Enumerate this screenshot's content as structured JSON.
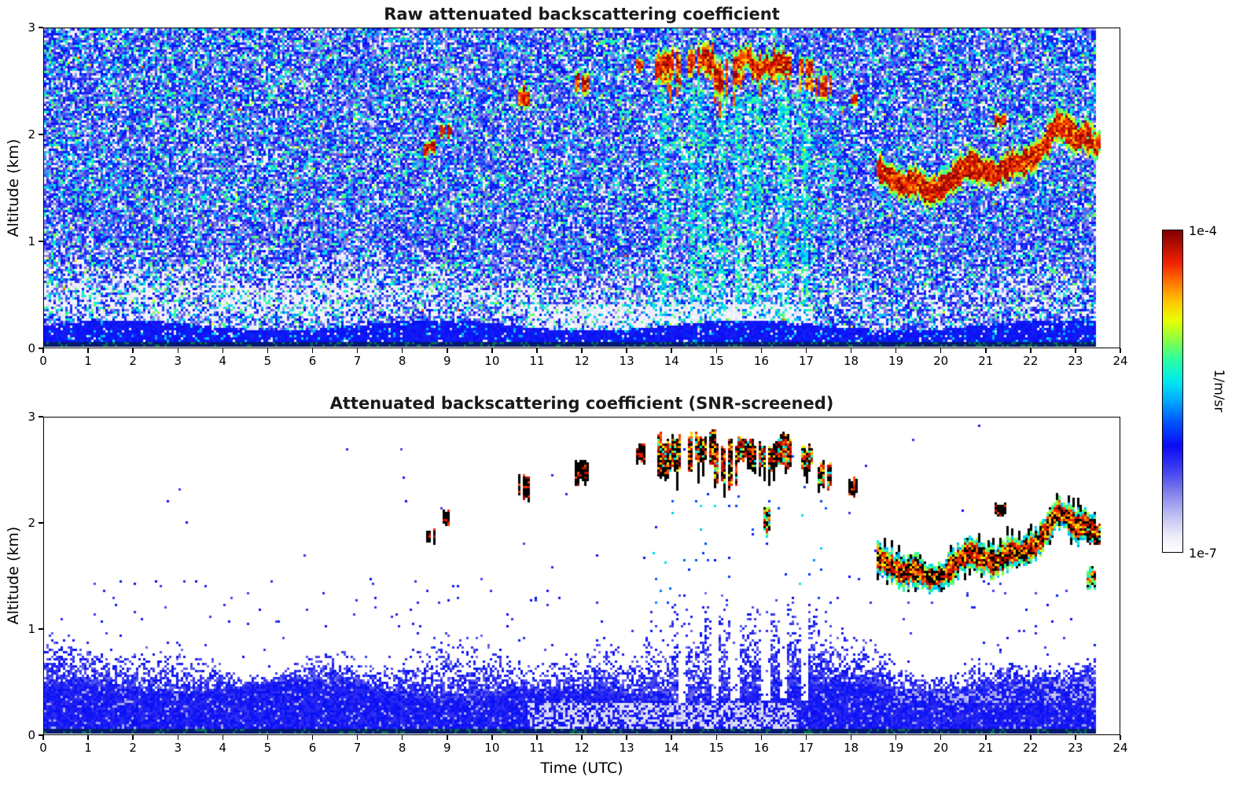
{
  "figure": {
    "background": "#ffffff",
    "xlabel": "Time (UTC)",
    "ylabel": "Altitude (km)",
    "colorbar": {
      "label": "1/m/sr",
      "top_label": "1e-4",
      "bottom_label": "1e-7",
      "stops": [
        {
          "t": 0.0,
          "c": "#ffffff"
        },
        {
          "t": 0.05,
          "c": "#ececfb"
        },
        {
          "t": 0.11,
          "c": "#c2c2f3"
        },
        {
          "t": 0.18,
          "c": "#8585ec"
        },
        {
          "t": 0.26,
          "c": "#3b3bf0"
        },
        {
          "t": 0.33,
          "c": "#0b0bf5"
        },
        {
          "t": 0.4,
          "c": "#0050ff"
        },
        {
          "t": 0.47,
          "c": "#00a8ff"
        },
        {
          "t": 0.53,
          "c": "#00e8f0"
        },
        {
          "t": 0.6,
          "c": "#2cff9e"
        },
        {
          "t": 0.66,
          "c": "#8aff42"
        },
        {
          "t": 0.72,
          "c": "#e8ff00"
        },
        {
          "t": 0.78,
          "c": "#ffc400"
        },
        {
          "t": 0.84,
          "c": "#ff7300"
        },
        {
          "t": 0.9,
          "c": "#f02000"
        },
        {
          "t": 1.0,
          "c": "#800000"
        }
      ]
    }
  },
  "chart_data": {
    "type": "heatmap",
    "value_scale": {
      "min": "1e-7",
      "max": "1e-4",
      "units": "1/m/sr",
      "scale": "log"
    },
    "panels": [
      {
        "title": "Raw attenuated backscattering coefficient",
        "xlim": [
          0,
          24
        ],
        "ylim": [
          0,
          3
        ],
        "xticks": [
          0,
          1,
          2,
          3,
          4,
          5,
          6,
          7,
          8,
          9,
          10,
          11,
          12,
          13,
          14,
          15,
          16,
          17,
          18,
          19,
          20,
          21,
          22,
          23,
          24
        ],
        "yticks": [
          0,
          1,
          2,
          3
        ]
      },
      {
        "title": "Attenuated backscattering coefficient (SNR-screened)",
        "xlim": [
          0,
          24
        ],
        "ylim": [
          0,
          3
        ],
        "xticks": [
          0,
          1,
          2,
          3,
          4,
          5,
          6,
          7,
          8,
          9,
          10,
          11,
          12,
          13,
          14,
          15,
          16,
          17,
          18,
          19,
          20,
          21,
          22,
          23,
          24
        ],
        "yticks": [
          0,
          1,
          2,
          3
        ]
      }
    ],
    "features": {
      "data_end_time": 23.55,
      "clouds": [
        {
          "t0": 13.7,
          "t1": 14.15,
          "aLo": 2.45,
          "aHi": 2.85
        },
        {
          "t0": 14.4,
          "t1": 14.95,
          "aLo": 2.5,
          "aHi": 2.9
        },
        {
          "t0": 15.0,
          "t1": 15.45,
          "aLo": 2.3,
          "aHi": 2.8
        },
        {
          "t0": 15.55,
          "t1": 15.8,
          "aLo": 2.55,
          "aHi": 2.85
        },
        {
          "t0": 15.85,
          "t1": 16.2,
          "aLo": 2.45,
          "aHi": 2.8
        },
        {
          "t0": 16.3,
          "t1": 16.65,
          "aLo": 2.5,
          "aHi": 2.85
        },
        {
          "t0": 16.9,
          "t1": 17.1,
          "aLo": 2.5,
          "aHi": 2.75
        },
        {
          "t0": 17.25,
          "t1": 17.55,
          "aLo": 2.3,
          "aHi": 2.6
        }
      ],
      "small_clouds": [
        {
          "t0": 8.5,
          "t1": 8.68,
          "aLo": 1.78,
          "aHi": 1.95
        },
        {
          "t0": 8.9,
          "t1": 9.05,
          "aLo": 1.95,
          "aHi": 2.12
        },
        {
          "t0": 10.62,
          "t1": 10.78,
          "aLo": 2.2,
          "aHi": 2.5
        },
        {
          "t0": 11.92,
          "t1": 12.08,
          "aLo": 2.35,
          "aHi": 2.6
        },
        {
          "t0": 13.25,
          "t1": 13.38,
          "aLo": 2.55,
          "aHi": 2.75
        },
        {
          "t0": 18.0,
          "t1": 18.12,
          "aLo": 2.25,
          "aHi": 2.42
        },
        {
          "t0": 21.28,
          "t1": 21.42,
          "aLo": 2.05,
          "aHi": 2.2
        }
      ],
      "aerosol_layer": {
        "path": [
          [
            18.65,
            1.68
          ],
          [
            18.9,
            1.6
          ],
          [
            19.2,
            1.52
          ],
          [
            19.5,
            1.56
          ],
          [
            19.8,
            1.46
          ],
          [
            20.1,
            1.5
          ],
          [
            20.4,
            1.62
          ],
          [
            20.7,
            1.72
          ],
          [
            21.0,
            1.66
          ],
          [
            21.3,
            1.62
          ],
          [
            21.6,
            1.72
          ],
          [
            21.9,
            1.73
          ],
          [
            22.2,
            1.8
          ],
          [
            22.45,
            1.95
          ],
          [
            22.65,
            2.1
          ],
          [
            22.9,
            2.05
          ],
          [
            23.1,
            1.95
          ],
          [
            23.3,
            2.0
          ],
          [
            23.55,
            1.92
          ]
        ],
        "thickness": 0.12
      },
      "layer_end_blob": {
        "t0": 23.32,
        "t1": 23.55,
        "aLo": 1.76,
        "aHi": 2.04
      },
      "precip_streaks": [
        13.85,
        14.5,
        14.68,
        15.15,
        15.55,
        15.78,
        15.98,
        16.5,
        16.62,
        17.02
      ],
      "bl_plumes": [
        13.6,
        14.1,
        14.35,
        14.85,
        15.1,
        15.5,
        15.9,
        16.3,
        16.7,
        17.1
      ],
      "attenuation_gaps": [
        14.28,
        15.02,
        15.45,
        16.15,
        16.55,
        17.0
      ],
      "mixed_streaks": [
        {
          "t0": 16.12,
          "t1": 16.25,
          "aLo": 1.85,
          "aHi": 2.2
        },
        {
          "t0": 23.3,
          "t1": 23.45,
          "aLo": 1.35,
          "aHi": 1.6
        }
      ]
    }
  }
}
